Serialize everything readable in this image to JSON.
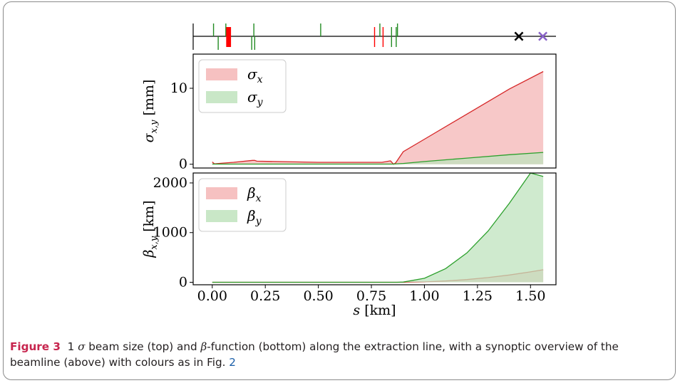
{
  "chart_data": [
    {
      "type": "synoptic",
      "markers": [
        {
          "s": 0.006,
          "side": "up",
          "color": "#228b22"
        },
        {
          "s": 0.028,
          "side": "down",
          "color": "#228b22"
        },
        {
          "s": 0.064,
          "side": "up",
          "color": "#228b22"
        },
        {
          "s": 0.071,
          "side": "block",
          "color": "#ff0000"
        },
        {
          "s": 0.077,
          "side": "block",
          "color": "#ff0000"
        },
        {
          "s": 0.083,
          "side": "block",
          "color": "#ff0000"
        },
        {
          "s": 0.186,
          "side": "down",
          "color": "#228b22"
        },
        {
          "s": 0.196,
          "side": "up",
          "color": "#228b22"
        },
        {
          "s": 0.2,
          "side": "down",
          "color": "#228b22"
        },
        {
          "s": 0.511,
          "side": "up",
          "color": "#228b22"
        },
        {
          "s": 0.765,
          "side": "both",
          "color": "#ff0000"
        },
        {
          "s": 0.79,
          "side": "up",
          "color": "#228b22"
        },
        {
          "s": 0.805,
          "side": "both",
          "color": "#ff0000"
        },
        {
          "s": 0.845,
          "side": "both",
          "color": "#228b22"
        },
        {
          "s": 0.867,
          "side": "both",
          "color": "#228b22"
        },
        {
          "s": 0.873,
          "side": "up",
          "color": "#228b22"
        }
      ],
      "end_markers": [
        {
          "s": 1.445,
          "symbol": "×",
          "color": "#000000"
        },
        {
          "s": 1.558,
          "symbol": "×",
          "color": "#8a63c8"
        }
      ]
    },
    {
      "type": "area",
      "ylabel_prefix": "σ",
      "ylabel_sub": "x,y",
      "ylabel_unit": "[mm]",
      "ylim": [
        -0.5,
        14.5
      ],
      "yticks": [
        0,
        10
      ],
      "legend": "top-left",
      "series": [
        {
          "name_main": "σ",
          "name_sub": "x",
          "color": "#d62728",
          "fill": "#f4b6b6",
          "x": [
            0.0,
            0.01,
            0.05,
            0.1,
            0.19,
            0.2,
            0.21,
            0.3,
            0.5,
            0.6,
            0.8,
            0.84,
            0.855,
            0.865,
            0.9,
            1.0,
            1.2,
            1.4,
            1.56
          ],
          "y": [
            0.3,
            0.05,
            0.15,
            0.25,
            0.5,
            0.5,
            0.4,
            0.35,
            0.25,
            0.25,
            0.25,
            0.45,
            0.0,
            0.2,
            1.65,
            3.3,
            6.6,
            9.9,
            12.2
          ]
        },
        {
          "name_main": "σ",
          "name_sub": "y",
          "color": "#2ca02c",
          "fill": "#bfe3bd",
          "x": [
            0.0,
            0.5,
            0.85,
            0.9,
            1.0,
            1.2,
            1.4,
            1.56
          ],
          "y": [
            0.02,
            0.02,
            0.02,
            0.1,
            0.35,
            0.8,
            1.25,
            1.55
          ]
        }
      ]
    },
    {
      "type": "area",
      "ylabel_prefix": "β",
      "ylabel_sub": "x,y",
      "ylabel_unit": "[km]",
      "ylim": [
        -50,
        2200
      ],
      "yticks": [
        0,
        1000,
        2000
      ],
      "xlim": [
        -0.09,
        1.62
      ],
      "xticks": [
        0.0,
        0.25,
        0.5,
        0.75,
        1.0,
        1.25,
        1.5
      ],
      "xticklabels": [
        "0.00",
        "0.25",
        "0.50",
        "0.75",
        "1.00",
        "1.25",
        "1.50"
      ],
      "xlabel_var": "s",
      "xlabel_unit": "[km]",
      "legend": "top-left",
      "series": [
        {
          "name_main": "β",
          "name_sub": "x",
          "color": "#d62728",
          "fill": "#f4b6b6",
          "x": [
            0.0,
            0.85,
            0.9,
            1.0,
            1.1,
            1.2,
            1.3,
            1.4,
            1.5,
            1.56
          ],
          "y": [
            0,
            0,
            0.5,
            8,
            26,
            55,
            95,
            146,
            209,
            252
          ]
        },
        {
          "name_main": "β",
          "name_sub": "y",
          "color": "#2ca02c",
          "fill": "#bfe3bd",
          "x": [
            0.0,
            0.87,
            0.9,
            1.0,
            1.1,
            1.2,
            1.3,
            1.4,
            1.5,
            1.56
          ],
          "y": [
            0,
            0,
            4,
            80,
            275,
            590,
            1030,
            1590,
            2270,
            2130
          ]
        }
      ]
    }
  ],
  "caption": {
    "label": "Figure 3",
    "pre": "1",
    "sigma": "σ",
    "text1": "beam size (top) and",
    "beta": "β",
    "text2": "-function (bottom) along the extraction line, with a synoptic overview of the beamline (above) with colours as in Fig.",
    "ref": "2"
  }
}
